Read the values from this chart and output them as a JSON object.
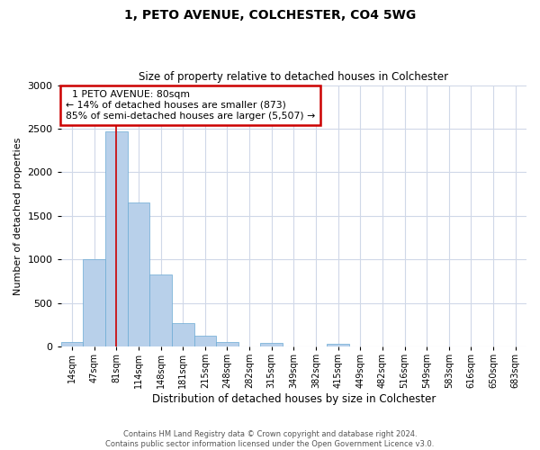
{
  "title": "1, PETO AVENUE, COLCHESTER, CO4 5WG",
  "subtitle": "Size of property relative to detached houses in Colchester",
  "xlabel": "Distribution of detached houses by size in Colchester",
  "ylabel": "Number of detached properties",
  "bar_labels": [
    "14sqm",
    "47sqm",
    "81sqm",
    "114sqm",
    "148sqm",
    "181sqm",
    "215sqm",
    "248sqm",
    "282sqm",
    "315sqm",
    "349sqm",
    "382sqm",
    "415sqm",
    "449sqm",
    "482sqm",
    "516sqm",
    "549sqm",
    "583sqm",
    "616sqm",
    "650sqm",
    "683sqm"
  ],
  "bar_values": [
    55,
    1000,
    2470,
    1650,
    830,
    270,
    130,
    50,
    5,
    40,
    5,
    5,
    30,
    5,
    5,
    5,
    5,
    5,
    5,
    5,
    5
  ],
  "bar_color": "#b8d0ea",
  "bar_edge_color": "#6aaad4",
  "ylim": [
    0,
    3000
  ],
  "yticks": [
    0,
    500,
    1000,
    1500,
    2000,
    2500,
    3000
  ],
  "vline_color": "#cc0000",
  "annotation_title": "1 PETO AVENUE: 80sqm",
  "annotation_line1": "← 14% of detached houses are smaller (873)",
  "annotation_line2": "85% of semi-detached houses are larger (5,507) →",
  "annotation_box_color": "#ffffff",
  "annotation_box_edge": "#cc0000",
  "footer1": "Contains HM Land Registry data © Crown copyright and database right 2024.",
  "footer2": "Contains public sector information licensed under the Open Government Licence v3.0.",
  "bg_color": "#ffffff",
  "grid_color": "#d0d8e8"
}
